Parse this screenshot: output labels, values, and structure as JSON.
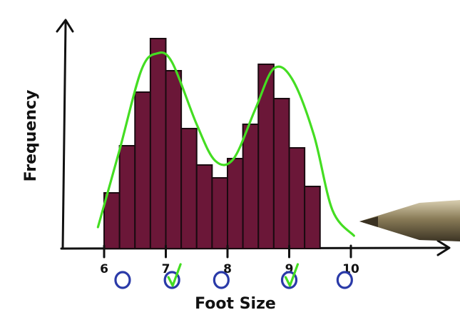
{
  "chart_data": {
    "type": "bar",
    "title": "",
    "xlabel": "Foot Size",
    "ylabel": "Frequency",
    "xlim": [
      6,
      10
    ],
    "ylim": [
      0,
      10
    ],
    "x_ticks": [
      "6",
      "7",
      "8",
      "9",
      "10"
    ],
    "bin_width": 0.25,
    "bins": [
      {
        "x0": 6.0,
        "value": 2.6
      },
      {
        "x0": 6.25,
        "value": 4.8
      },
      {
        "x0": 6.5,
        "value": 7.3
      },
      {
        "x0": 6.75,
        "value": 9.8
      },
      {
        "x0": 7.0,
        "value": 8.3
      },
      {
        "x0": 7.25,
        "value": 5.6
      },
      {
        "x0": 7.5,
        "value": 3.9
      },
      {
        "x0": 7.75,
        "value": 3.3
      },
      {
        "x0": 8.0,
        "value": 4.2
      },
      {
        "x0": 8.25,
        "value": 5.8
      },
      {
        "x0": 8.5,
        "value": 8.6
      },
      {
        "x0": 8.75,
        "value": 7.0
      },
      {
        "x0": 9.0,
        "value": 4.7
      },
      {
        "x0": 9.25,
        "value": 2.9
      }
    ],
    "curve": [
      [
        5.9,
        1.0
      ],
      [
        6.25,
        4.6
      ],
      [
        6.6,
        8.3
      ],
      [
        6.85,
        9.1
      ],
      [
        7.1,
        8.7
      ],
      [
        7.5,
        5.8
      ],
      [
        7.8,
        4.1
      ],
      [
        8.1,
        4.2
      ],
      [
        8.45,
        6.5
      ],
      [
        8.75,
        8.4
      ],
      [
        9.05,
        7.9
      ],
      [
        9.4,
        5.3
      ],
      [
        9.7,
        1.8
      ],
      [
        10.05,
        0.6
      ]
    ],
    "markers": [
      {
        "x": 6.3,
        "type": "circle"
      },
      {
        "x": 7.1,
        "type": "circle-check"
      },
      {
        "x": 7.9,
        "type": "circle"
      },
      {
        "x": 9.0,
        "type": "circle-check"
      },
      {
        "x": 9.9,
        "type": "circle"
      }
    ],
    "grid": false,
    "legend": "none"
  },
  "colors": {
    "bar": "#6b1738",
    "bar_edge": "#1a0a10",
    "curve": "#44dd22",
    "marker": "#2a3aa8",
    "axis": "#111111",
    "pen": "#8a7c58"
  }
}
